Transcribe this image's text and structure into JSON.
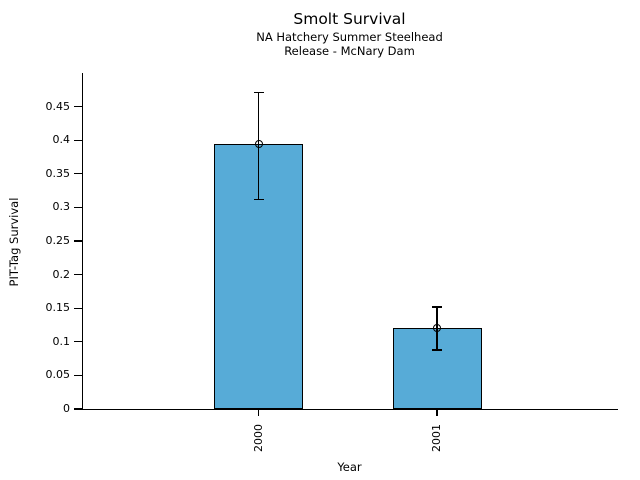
{
  "chart_data": {
    "type": "bar",
    "title": "Smolt Survival",
    "subtitle1": "NA Hatchery Summer Steelhead",
    "subtitle2": "Release - McNary Dam",
    "xlabel": "Year",
    "ylabel": "PIT-Tag Survival",
    "categories": [
      "2000",
      "2001"
    ],
    "values": [
      0.394,
      0.12
    ],
    "error_low": [
      0.312,
      0.088
    ],
    "error_high": [
      0.471,
      0.152
    ],
    "ylim": [
      0,
      0.5
    ],
    "yticks": [
      0,
      0.05,
      0.1,
      0.15,
      0.2,
      0.25,
      0.3,
      0.35,
      0.4,
      0.45
    ],
    "ytick_labels": [
      "0",
      "0.05",
      "0.1",
      "0.15",
      "0.2",
      "0.25",
      "0.3",
      "0.35",
      "0.4",
      "0.45"
    ],
    "bar_color": "#57ABD7",
    "edge_color": "#000000",
    "grid": false,
    "legend": null
  }
}
